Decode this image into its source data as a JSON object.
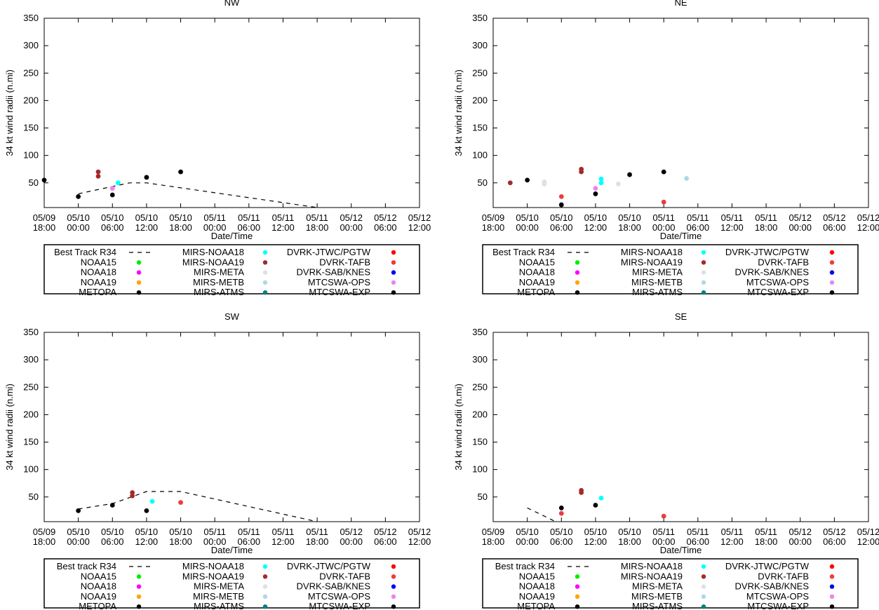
{
  "axes": {
    "x_ticks": [
      "05/09 18:00",
      "05/10 00:00",
      "05/10 06:00",
      "05/10 12:00",
      "05/10 18:00",
      "05/11 00:00",
      "05/11 06:00",
      "05/11 12:00",
      "05/11 18:00",
      "05/12 00:00",
      "05/12 06:00",
      "05/12 12:00"
    ],
    "y_ticks": [
      50,
      100,
      150,
      200,
      250,
      300,
      350
    ],
    "ylim": [
      5,
      350
    ],
    "xlabel": "Date/Time",
    "ylabel": "34 kt wind radii (n.mi)"
  },
  "legend_colors": {
    "NOAA15": "#00ee00",
    "NOAA18": "#ff00ff",
    "NOAA19": "#ffa500",
    "METOPA": "#000000",
    "MIRS-NOAA18": "#00ffff",
    "MIRS-NOAA19": "#a52a2a",
    "MIRS-META": "#e0e0e0",
    "MIRS-METB": "#add8e6",
    "MIRS-ATMS": "#008080",
    "DVRK-JTWC/PGTW": "#ff0000",
    "DVRK-TAFB": "#ee3b3b",
    "DVRK-SAB/KNES": "#0000ff",
    "MTCSWA-OPS": "#ee82ee",
    "MTCSWA-EXP": "#000000"
  },
  "chart_data": [
    {
      "type": "scatter",
      "title": "NW",
      "best_track_label": "Best Track R34",
      "best_track": [
        [
          6,
          30
        ],
        [
          15,
          50
        ],
        [
          18,
          50
        ],
        [
          48,
          5
        ]
      ],
      "points": [
        {
          "series": "METOPA",
          "x": 0,
          "y": 55
        },
        {
          "series": "METOPA",
          "x": 6,
          "y": 25
        },
        {
          "series": "MIRS-NOAA19",
          "x": 9.5,
          "y": 70
        },
        {
          "series": "MIRS-NOAA19",
          "x": 9.5,
          "y": 62
        },
        {
          "series": "METOPA",
          "x": 12,
          "y": 28
        },
        {
          "series": "MTCSWA-OPS",
          "x": 12,
          "y": 40
        },
        {
          "series": "MIRS-NOAA18",
          "x": 13,
          "y": 50
        },
        {
          "series": "METOPA",
          "x": 18,
          "y": 60
        },
        {
          "series": "METOPA",
          "x": 24,
          "y": 70
        }
      ]
    },
    {
      "type": "scatter",
      "title": "NE",
      "best_track_label": "Best Track R34",
      "best_track": [],
      "points": [
        {
          "series": "MIRS-NOAA19",
          "x": 3,
          "y": 50
        },
        {
          "series": "METOPA",
          "x": 6,
          "y": 55
        },
        {
          "series": "MIRS-META",
          "x": 9,
          "y": 52
        },
        {
          "series": "MIRS-META",
          "x": 9,
          "y": 48
        },
        {
          "series": "DVRK-TAFB",
          "x": 12,
          "y": 25
        },
        {
          "series": "METOPA",
          "x": 12,
          "y": 10
        },
        {
          "series": "MIRS-NOAA19",
          "x": 15.5,
          "y": 75
        },
        {
          "series": "MIRS-NOAA19",
          "x": 15.5,
          "y": 70
        },
        {
          "series": "METOPA",
          "x": 18,
          "y": 30
        },
        {
          "series": "MTCSWA-OPS",
          "x": 18,
          "y": 40
        },
        {
          "series": "MIRS-NOAA18",
          "x": 19,
          "y": 57
        },
        {
          "series": "MIRS-NOAA18",
          "x": 19,
          "y": 50
        },
        {
          "series": "MIRS-META",
          "x": 22,
          "y": 48
        },
        {
          "series": "METOPA",
          "x": 24,
          "y": 65
        },
        {
          "series": "DVRK-TAFB",
          "x": 30,
          "y": 15
        },
        {
          "series": "METOPA",
          "x": 30,
          "y": 70
        },
        {
          "series": "MIRS-METB",
          "x": 34,
          "y": 58
        }
      ]
    },
    {
      "type": "scatter",
      "title": "SW",
      "best_track_label": "Best track R34",
      "best_track": [
        [
          6,
          28
        ],
        [
          12,
          38
        ],
        [
          18,
          60
        ],
        [
          24,
          60
        ],
        [
          48,
          5
        ]
      ],
      "points": [
        {
          "series": "METOPA",
          "x": 6,
          "y": 25
        },
        {
          "series": "METOPA",
          "x": 12,
          "y": 35
        },
        {
          "series": "MIRS-NOAA19",
          "x": 15.5,
          "y": 58
        },
        {
          "series": "MIRS-NOAA19",
          "x": 15.5,
          "y": 52
        },
        {
          "series": "METOPA",
          "x": 18,
          "y": 25
        },
        {
          "series": "MIRS-NOAA18",
          "x": 19,
          "y": 42
        },
        {
          "series": "DVRK-TAFB",
          "x": 24,
          "y": 40
        }
      ]
    },
    {
      "type": "scatter",
      "title": "SE",
      "best_track_label": "Best track R34",
      "best_track": [
        [
          6,
          30
        ],
        [
          11,
          5
        ]
      ],
      "points": [
        {
          "series": "METOPA",
          "x": 12,
          "y": 30
        },
        {
          "series": "DVRK-TAFB",
          "x": 12,
          "y": 20
        },
        {
          "series": "MIRS-NOAA19",
          "x": 15.5,
          "y": 62
        },
        {
          "series": "MIRS-NOAA19",
          "x": 15.5,
          "y": 58
        },
        {
          "series": "METOPA",
          "x": 18,
          "y": 35
        },
        {
          "series": "MIRS-NOAA18",
          "x": 19,
          "y": 48
        },
        {
          "series": "DVRK-TAFB",
          "x": 30,
          "y": 15
        }
      ]
    }
  ],
  "legend_layout": {
    "col1": [
      "best_track",
      "NOAA15",
      "NOAA18",
      "NOAA19",
      "METOPA"
    ],
    "col2": [
      "MIRS-NOAA18",
      "MIRS-NOAA19",
      "MIRS-META",
      "MIRS-METB",
      "MIRS-ATMS"
    ],
    "col3": [
      "DVRK-JTWC/PGTW",
      "DVRK-TAFB",
      "DVRK-SAB/KNES",
      "MTCSWA-OPS",
      "MTCSWA-EXP"
    ]
  }
}
